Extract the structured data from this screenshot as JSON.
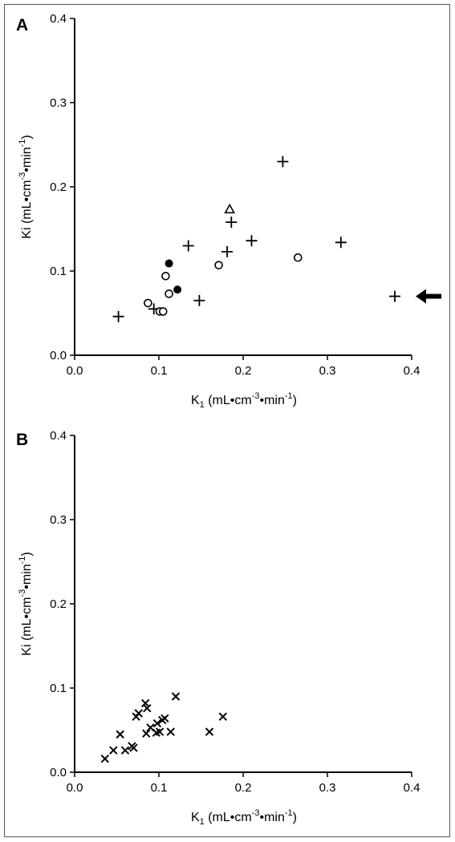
{
  "chart_data": [
    {
      "type": "scatter",
      "panel": "A",
      "xlabel": {
        "main": "K",
        "sub": "1",
        "units": " (mL•cm",
        "exp1": "-3",
        "mid": "•min",
        "exp2": "-1",
        "end": ")"
      },
      "ylabel": {
        "main": "Ki",
        "units": " (mL•cm",
        "exp1": "-3",
        "mid": "•min",
        "exp2": "-1",
        "end": ")"
      },
      "xlim": [
        0,
        0.4
      ],
      "ylim": [
        0,
        0.4
      ],
      "xticks": [
        "0.0",
        "0.1",
        "0.2",
        "0.3",
        "0.4"
      ],
      "yticks": [
        "0.0",
        "0.1",
        "0.2",
        "0.3",
        "0.4"
      ],
      "grid": false,
      "series": [
        {
          "marker": "plus",
          "points": [
            [
              0.052,
              0.046
            ],
            [
              0.094,
              0.055
            ],
            [
              0.135,
              0.13
            ],
            [
              0.148,
              0.065
            ],
            [
              0.181,
              0.123
            ],
            [
              0.186,
              0.158
            ],
            [
              0.21,
              0.136
            ],
            [
              0.247,
              0.23
            ],
            [
              0.316,
              0.134
            ],
            [
              0.38,
              0.07
            ]
          ]
        },
        {
          "marker": "circle-open",
          "points": [
            [
              0.087,
              0.062
            ],
            [
              0.101,
              0.052
            ],
            [
              0.105,
              0.052
            ],
            [
              0.108,
              0.094
            ],
            [
              0.112,
              0.073
            ],
            [
              0.171,
              0.107
            ],
            [
              0.265,
              0.116
            ]
          ]
        },
        {
          "marker": "circle-filled",
          "points": [
            [
              0.112,
              0.109
            ],
            [
              0.122,
              0.078
            ]
          ]
        },
        {
          "marker": "triangle-open",
          "points": [
            [
              0.184,
              0.173
            ]
          ]
        }
      ],
      "annotations": [
        {
          "type": "arrow",
          "direction": "left",
          "points_to": [
            0.38,
            0.07
          ]
        }
      ]
    },
    {
      "type": "scatter",
      "panel": "B",
      "xlabel": {
        "main": "K",
        "sub": "1",
        "units": " (mL•cm",
        "exp1": "-3",
        "mid": "•min",
        "exp2": "-1",
        "end": ")"
      },
      "ylabel": {
        "main": "Ki",
        "units": " (mL•cm",
        "exp1": "-3",
        "mid": "•min",
        "exp2": "-1",
        "end": ")"
      },
      "xlim": [
        0,
        0.4
      ],
      "ylim": [
        0,
        0.4
      ],
      "xticks": [
        "0.0",
        "0.1",
        "0.2",
        "0.3",
        "0.4"
      ],
      "yticks": [
        "0.0",
        "0.1",
        "0.2",
        "0.3",
        "0.4"
      ],
      "grid": false,
      "series": [
        {
          "marker": "x",
          "points": [
            [
              0.036,
              0.016
            ],
            [
              0.046,
              0.026
            ],
            [
              0.054,
              0.045
            ],
            [
              0.06,
              0.026
            ],
            [
              0.068,
              0.031
            ],
            [
              0.07,
              0.029
            ],
            [
              0.073,
              0.066
            ],
            [
              0.076,
              0.07
            ],
            [
              0.084,
              0.082
            ],
            [
              0.085,
              0.046
            ],
            [
              0.086,
              0.076
            ],
            [
              0.09,
              0.053
            ],
            [
              0.097,
              0.047
            ],
            [
              0.098,
              0.058
            ],
            [
              0.101,
              0.048
            ],
            [
              0.104,
              0.062
            ],
            [
              0.107,
              0.064
            ],
            [
              0.114,
              0.048
            ],
            [
              0.12,
              0.09
            ],
            [
              0.16,
              0.048
            ],
            [
              0.176,
              0.066
            ]
          ]
        }
      ]
    }
  ]
}
